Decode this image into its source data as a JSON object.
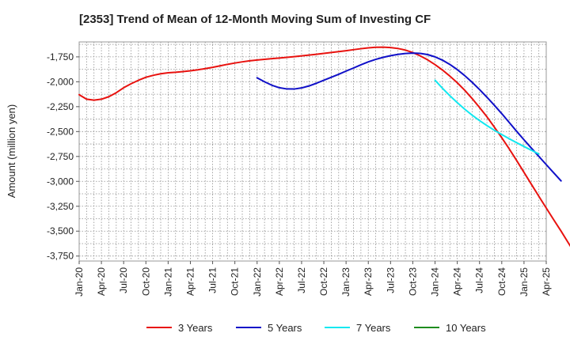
{
  "chart_data": {
    "type": "line",
    "title": "[2353]  Trend of Mean of 12-Month Moving Sum of Investing CF",
    "xlabel": "",
    "ylabel": "Amount (million yen)",
    "ylim": [
      -3800,
      -1600
    ],
    "yticks": [
      -1750,
      -2000,
      -2250,
      -2500,
      -2750,
      -3000,
      -3250,
      -3500,
      -3750
    ],
    "ytick_labels": [
      "-1,750",
      "-2,000",
      "-2,250",
      "-2,500",
      "-2,750",
      "-3,000",
      "-3,250",
      "-3,500",
      "-3,750"
    ],
    "xtick_labels": [
      "Jan-20",
      "Apr-20",
      "Jul-20",
      "Oct-20",
      "Jan-21",
      "Apr-21",
      "Jul-21",
      "Oct-21",
      "Jan-22",
      "Apr-22",
      "Jul-22",
      "Oct-22",
      "Jan-23",
      "Apr-23",
      "Jul-23",
      "Oct-23",
      "Jan-24",
      "Apr-24",
      "Jul-24",
      "Oct-24",
      "Jan-25",
      "Apr-25"
    ],
    "grid": true,
    "legend_position": "bottom",
    "series": [
      {
        "name": "3 Years",
        "color": "#e8120f",
        "points": [
          [
            0,
            -2130
          ],
          [
            1,
            -2175
          ],
          [
            2,
            -2185
          ],
          [
            3,
            -2175
          ],
          [
            4,
            -2150
          ],
          [
            5,
            -2110
          ],
          [
            6,
            -2060
          ],
          [
            7,
            -2020
          ],
          [
            8,
            -1985
          ],
          [
            9,
            -1955
          ],
          [
            10,
            -1935
          ],
          [
            11,
            -1920
          ],
          [
            12,
            -1910
          ],
          [
            13,
            -1905
          ],
          [
            14,
            -1898
          ],
          [
            15,
            -1890
          ],
          [
            16,
            -1880
          ],
          [
            17,
            -1868
          ],
          [
            18,
            -1855
          ],
          [
            19,
            -1840
          ],
          [
            20,
            -1825
          ],
          [
            21,
            -1812
          ],
          [
            22,
            -1800
          ],
          [
            23,
            -1790
          ],
          [
            24,
            -1782
          ],
          [
            25,
            -1775
          ],
          [
            26,
            -1768
          ],
          [
            27,
            -1762
          ],
          [
            28,
            -1755
          ],
          [
            29,
            -1748
          ],
          [
            30,
            -1740
          ],
          [
            31,
            -1732
          ],
          [
            32,
            -1724
          ],
          [
            33,
            -1715
          ],
          [
            34,
            -1706
          ],
          [
            35,
            -1697
          ],
          [
            36,
            -1688
          ],
          [
            37,
            -1678
          ],
          [
            38,
            -1668
          ],
          [
            39,
            -1660
          ],
          [
            40,
            -1654
          ],
          [
            41,
            -1653
          ],
          [
            42,
            -1657
          ],
          [
            43,
            -1666
          ],
          [
            44,
            -1682
          ],
          [
            45,
            -1707
          ],
          [
            46,
            -1740
          ],
          [
            47,
            -1780
          ],
          [
            48,
            -1828
          ],
          [
            49,
            -1882
          ],
          [
            50,
            -1943
          ],
          [
            51,
            -2010
          ],
          [
            52,
            -2085
          ],
          [
            53,
            -2168
          ],
          [
            54,
            -2258
          ],
          [
            55,
            -2352
          ],
          [
            56,
            -2455
          ],
          [
            57,
            -2562
          ],
          [
            58,
            -2673
          ],
          [
            59,
            -2790
          ],
          [
            60,
            -2910
          ],
          [
            61,
            -3030
          ],
          [
            62,
            -3150
          ],
          [
            63,
            -3268
          ],
          [
            64,
            -3385
          ],
          [
            65,
            -3500
          ],
          [
            66,
            -3620
          ],
          [
            67,
            -3740
          ]
        ]
      },
      {
        "name": "5 Years",
        "color": "#1010c8",
        "points": [
          [
            24,
            -1960
          ],
          [
            25,
            -2000
          ],
          [
            26,
            -2035
          ],
          [
            27,
            -2060
          ],
          [
            28,
            -2072
          ],
          [
            29,
            -2073
          ],
          [
            30,
            -2062
          ],
          [
            31,
            -2042
          ],
          [
            32,
            -2015
          ],
          [
            33,
            -1985
          ],
          [
            34,
            -1955
          ],
          [
            35,
            -1925
          ],
          [
            36,
            -1893
          ],
          [
            37,
            -1862
          ],
          [
            38,
            -1830
          ],
          [
            39,
            -1800
          ],
          [
            40,
            -1775
          ],
          [
            41,
            -1755
          ],
          [
            42,
            -1738
          ],
          [
            43,
            -1725
          ],
          [
            44,
            -1716
          ],
          [
            45,
            -1712
          ],
          [
            46,
            -1715
          ],
          [
            47,
            -1727
          ],
          [
            48,
            -1750
          ],
          [
            49,
            -1783
          ],
          [
            50,
            -1826
          ],
          [
            51,
            -1878
          ],
          [
            52,
            -1938
          ],
          [
            53,
            -2005
          ],
          [
            54,
            -2078
          ],
          [
            55,
            -2155
          ],
          [
            56,
            -2236
          ],
          [
            57,
            -2320
          ],
          [
            58,
            -2408
          ],
          [
            59,
            -2497
          ],
          [
            60,
            -2583
          ],
          [
            61,
            -2667
          ],
          [
            62,
            -2749
          ],
          [
            63,
            -2832
          ],
          [
            64,
            -2914
          ],
          [
            65,
            -2995
          ]
        ]
      },
      {
        "name": "7 Years",
        "color": "#12e8f0",
        "points": [
          [
            48,
            -1985
          ],
          [
            49,
            -2065
          ],
          [
            50,
            -2140
          ],
          [
            51,
            -2210
          ],
          [
            52,
            -2275
          ],
          [
            53,
            -2335
          ],
          [
            54,
            -2390
          ],
          [
            55,
            -2440
          ],
          [
            56,
            -2487
          ],
          [
            57,
            -2530
          ],
          [
            58,
            -2572
          ],
          [
            59,
            -2612
          ],
          [
            60,
            -2650
          ],
          [
            61,
            -2688
          ],
          [
            62,
            -2725
          ]
        ]
      },
      {
        "name": "10 Years",
        "color": "#1e8c1e",
        "points": []
      }
    ]
  }
}
